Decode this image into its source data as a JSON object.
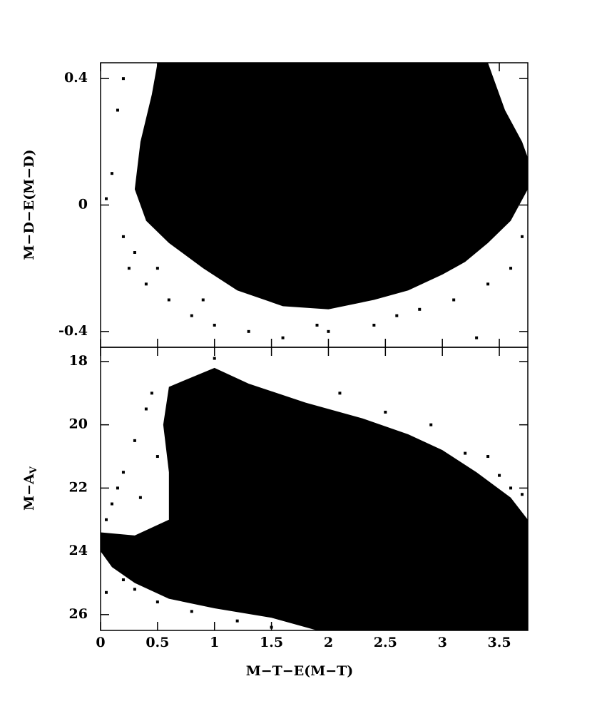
{
  "chart_data": [
    {
      "type": "density",
      "ylabel": "M−D−E(M−D)",
      "xlim": [
        0,
        3.75
      ],
      "ylim": [
        -0.45,
        0.45
      ],
      "xticks": [
        0,
        0.5,
        1,
        1.5,
        2,
        2.5,
        3,
        3.5
      ],
      "yticks": [
        0.4,
        0,
        -0.4
      ],
      "color": "#000000",
      "region": {
        "x": [
          0.5,
          3.4,
          3.55,
          3.7,
          3.75,
          3.75,
          3.6,
          3.4,
          3.2,
          3.0,
          2.7,
          2.4,
          2.0,
          1.6,
          1.2,
          0.9,
          0.6,
          0.4,
          0.3,
          0.35,
          0.45
        ],
        "y": [
          0.45,
          0.45,
          0.3,
          0.2,
          0.15,
          0.05,
          -0.05,
          -0.12,
          -0.18,
          -0.22,
          -0.27,
          -0.3,
          -0.33,
          -0.32,
          -0.27,
          -0.2,
          -0.12,
          -0.05,
          0.05,
          0.2,
          0.35
        ]
      },
      "points": {
        "x": [
          0.1,
          0.15,
          0.2,
          0.25,
          0.4,
          0.6,
          0.8,
          1.0,
          1.3,
          1.6,
          2.0,
          2.4,
          2.8,
          3.1,
          3.4,
          3.6,
          0.05,
          0.3,
          0.5,
          2.6,
          3.3,
          0.9,
          1.9,
          0.2,
          3.7
        ],
        "y": [
          0.1,
          0.3,
          -0.1,
          -0.2,
          -0.25,
          -0.3,
          -0.35,
          -0.38,
          -0.4,
          -0.42,
          -0.4,
          -0.38,
          -0.33,
          -0.3,
          -0.25,
          -0.2,
          0.02,
          -0.15,
          -0.2,
          -0.35,
          -0.42,
          -0.3,
          -0.38,
          0.4,
          -0.1
        ]
      }
    },
    {
      "type": "density",
      "xlabel": "M−T−E(M−T)",
      "ylabel": "M−A",
      "ylabel_sub": "V",
      "xlim": [
        0,
        3.75
      ],
      "ylim": [
        26.5,
        17.55
      ],
      "xticks": [
        0,
        0.5,
        1,
        1.5,
        2,
        2.5,
        3,
        3.5
      ],
      "yticks": [
        18,
        20,
        22,
        24,
        26
      ],
      "color": "#000000",
      "region": {
        "x": [
          0.6,
          0.8,
          1.0,
          1.3,
          1.8,
          2.3,
          2.7,
          3.0,
          3.3,
          3.6,
          3.75,
          3.75,
          3.3,
          2.5,
          1.9,
          1.5,
          1.0,
          0.6,
          0.3,
          0.1,
          0.0,
          0.0,
          0.3,
          0.6,
          0.6,
          0.55
        ],
        "y": [
          18.8,
          18.5,
          18.2,
          18.7,
          19.3,
          19.8,
          20.3,
          20.8,
          21.5,
          22.3,
          23,
          26.5,
          26.5,
          26.5,
          26.5,
          26.1,
          25.8,
          25.5,
          25,
          24.5,
          24.0,
          23.4,
          23.5,
          23.0,
          21.5,
          20
        ]
      },
      "points": {
        "x": [
          0.05,
          0.1,
          0.2,
          0.3,
          0.4,
          0.45,
          0.2,
          0.3,
          0.5,
          0.8,
          1.2,
          1.5,
          2.9,
          3.2,
          3.5,
          3.7,
          0.15,
          0.35,
          0.5,
          1.0,
          2.1,
          2.5,
          3.4,
          0.05,
          3.6
        ],
        "y": [
          23,
          22.5,
          21.5,
          20.5,
          19.5,
          19,
          24.9,
          25.2,
          25.6,
          25.9,
          26.2,
          26.4,
          20,
          20.9,
          21.6,
          22.2,
          22,
          22.3,
          21,
          17.9,
          19,
          19.6,
          21,
          25.3,
          22
        ]
      }
    }
  ]
}
